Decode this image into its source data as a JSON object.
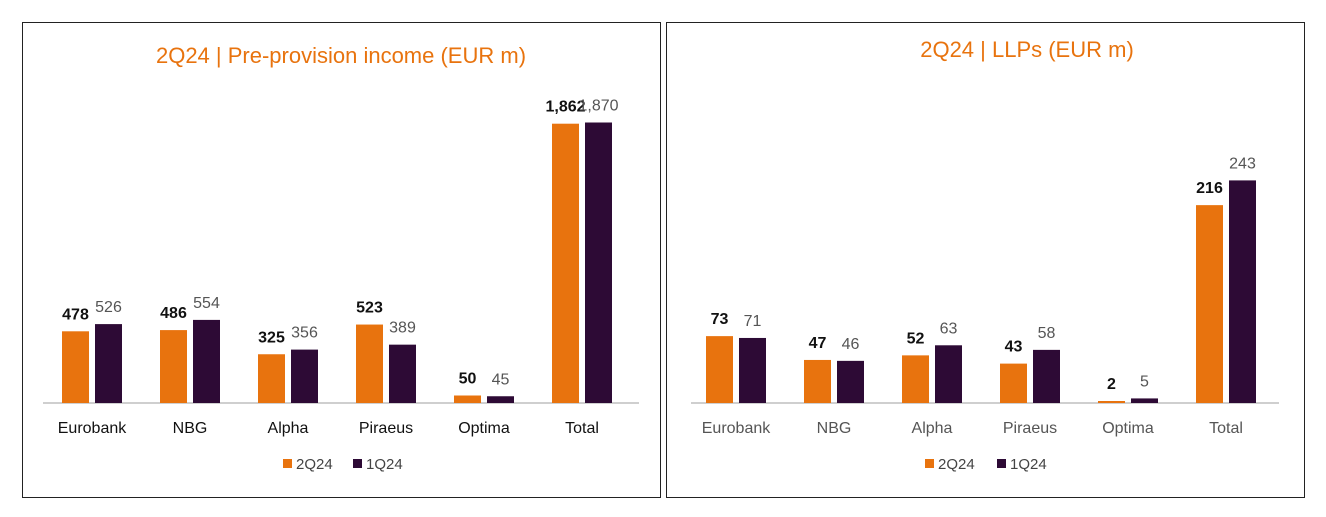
{
  "colors": {
    "series_2q": "#E8730E",
    "series_1q": "#2D0A35",
    "title": "#E8730E",
    "axis": "#BFBFBF"
  },
  "chart_data": [
    {
      "type": "bar",
      "title": "2Q24 | Pre-provision income (EUR m)",
      "categories": [
        "Eurobank",
        "NBG",
        "Alpha",
        "Piraeus",
        "Optima",
        "Total"
      ],
      "series": [
        {
          "name": "2Q24",
          "values": [
            478,
            486,
            325,
            523,
            50,
            1862
          ],
          "labels": [
            "478",
            "486",
            "325",
            "523",
            "50",
            "1,862"
          ]
        },
        {
          "name": "1Q24",
          "values": [
            526,
            554,
            356,
            389,
            45,
            1870
          ],
          "labels": [
            "526",
            "554",
            "356",
            "389",
            "45",
            "1,870"
          ]
        }
      ],
      "ylim": [
        0,
        1900
      ],
      "legend": "bottom-center",
      "xlabel": "",
      "ylabel": ""
    },
    {
      "type": "bar",
      "title": "2Q24 | LLPs (EUR m)",
      "categories": [
        "Eurobank",
        "NBG",
        "Alpha",
        "Piraeus",
        "Optima",
        "Total"
      ],
      "series": [
        {
          "name": "2Q24",
          "values": [
            73,
            47,
            52,
            43,
            2,
            216
          ],
          "labels": [
            "73",
            "47",
            "52",
            "43",
            "2",
            "216"
          ]
        },
        {
          "name": "1Q24",
          "values": [
            71,
            46,
            63,
            58,
            5,
            243
          ],
          "labels": [
            "71",
            "46",
            "63",
            "58",
            "5",
            "243"
          ]
        }
      ],
      "ylim": [
        0,
        262
      ],
      "legend": "bottom-center",
      "xlabel": "",
      "ylabel": ""
    }
  ]
}
